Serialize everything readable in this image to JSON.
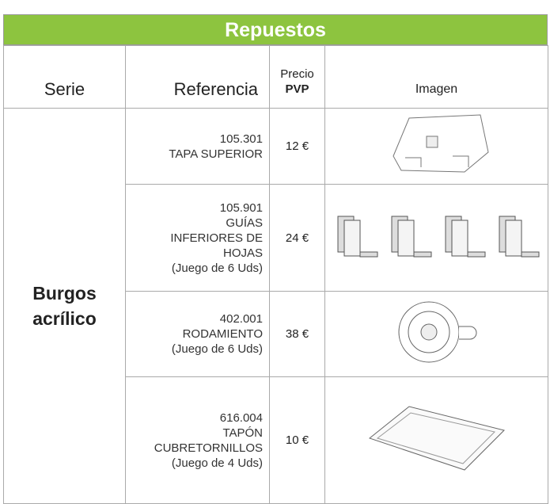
{
  "header": {
    "title": "Repuestos"
  },
  "table": {
    "columns": {
      "serie": "Serie",
      "referencia": "Referencia",
      "precio": "Precio",
      "pvp": "PVP",
      "imagen": "Imagen"
    },
    "serie": "Burgos acrílico",
    "rows": [
      {
        "referencia": [
          "105.301",
          "TAPA SUPERIOR"
        ],
        "precio": "12 €"
      },
      {
        "referencia": [
          "105.901",
          "GUÍAS",
          "INFERIORES DE",
          "HOJAS",
          "(Juego de 6 Uds)"
        ],
        "precio": "24 €"
      },
      {
        "referencia": [
          "402.001",
          "RODAMIENTO",
          "(Juego de 6 Uds)"
        ],
        "precio": "38 €"
      },
      {
        "referencia": [
          "616.004",
          "TAPÓN",
          "CUBRETORNILLOS",
          "(Juego de 4 Uds)"
        ],
        "precio": "10 €"
      }
    ]
  }
}
